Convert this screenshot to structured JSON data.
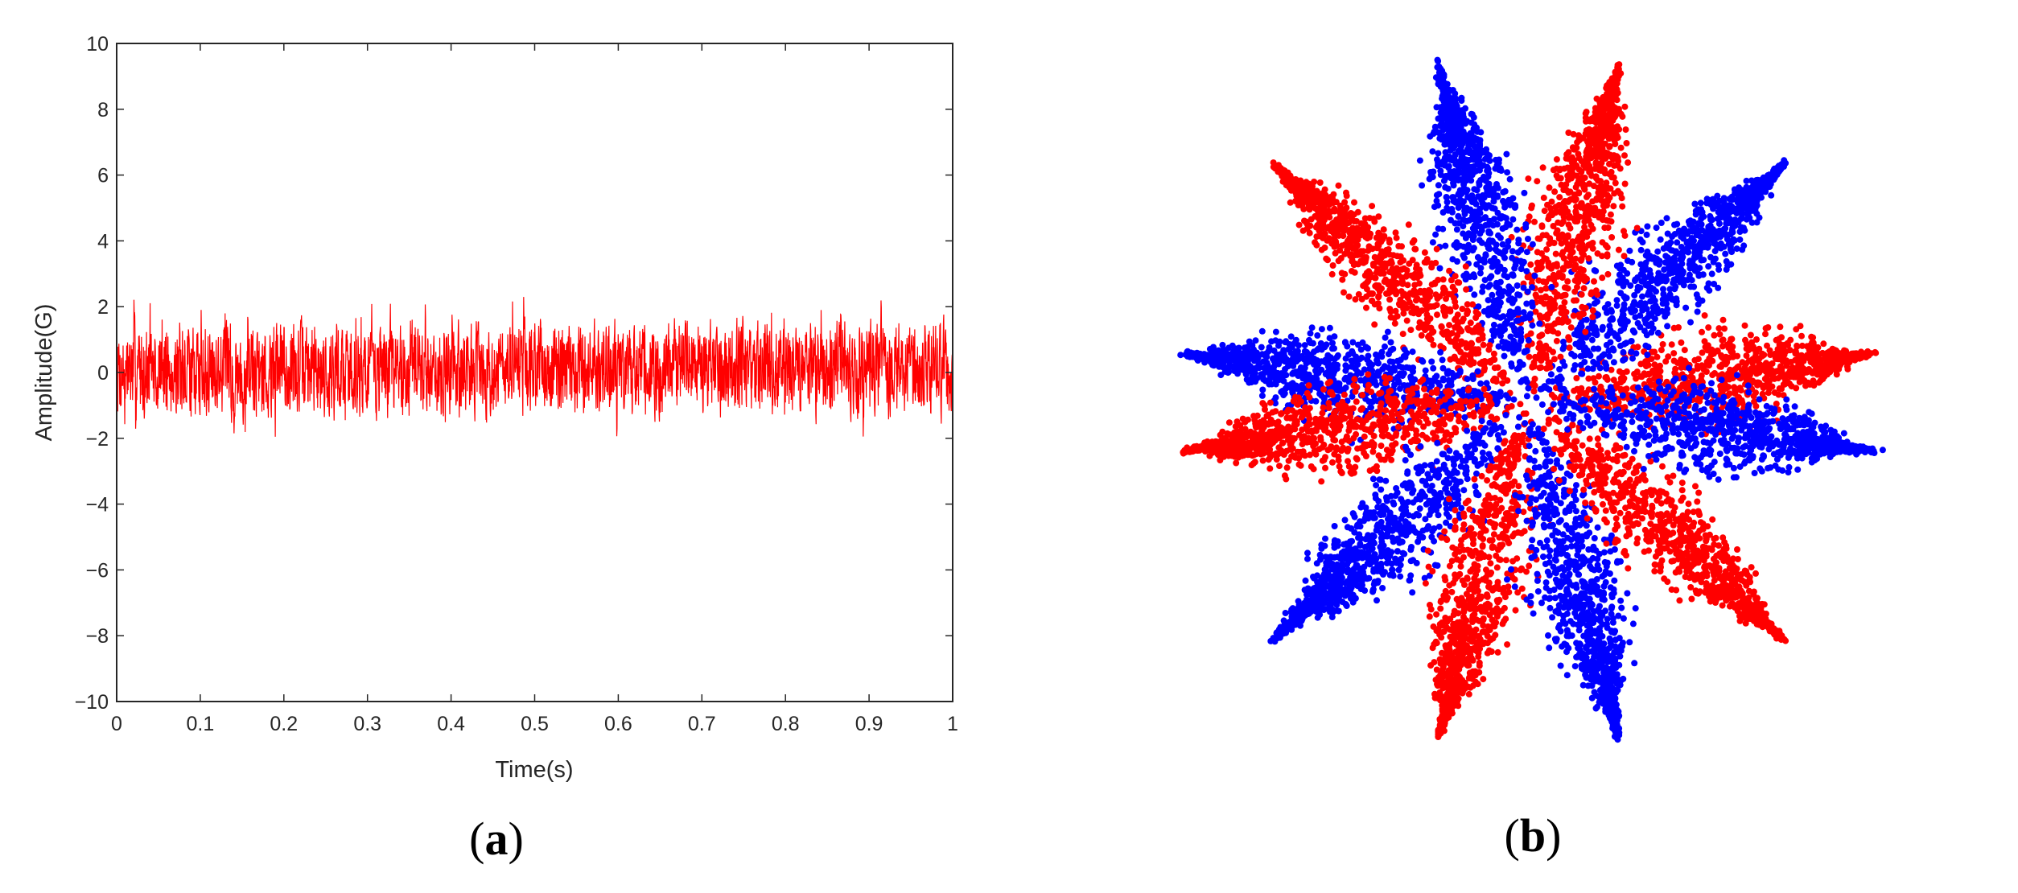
{
  "figure": {
    "panel_a_label": {
      "open": "(",
      "letter": "a",
      "close": ")"
    },
    "panel_b_label": {
      "open": "(",
      "letter": "b",
      "close": ")"
    }
  },
  "chart_data": [
    {
      "type": "line",
      "panel": "a",
      "xlabel": "Time(s)",
      "ylabel": "Amplitude(G)",
      "xlim": [
        0,
        1
      ],
      "ylim": [
        -10,
        10
      ],
      "xticks": [
        "0",
        "0.1",
        "0.2",
        "0.3",
        "0.4",
        "0.5",
        "0.6",
        "0.7",
        "0.8",
        "0.9",
        "1"
      ],
      "yticks": [
        "10",
        "8",
        "6",
        "4",
        "2",
        "0",
        "−2",
        "−4",
        "−6",
        "−8",
        "−10"
      ],
      "grid": false,
      "series": [
        {
          "color": "#ff0000",
          "signal": "noise",
          "mean": 0.1,
          "typical_min": -2,
          "typical_max": 2.3,
          "samples": 3000
        }
      ]
    },
    {
      "type": "scatter",
      "panel": "b",
      "axes_visible": false,
      "description_shape": "twelve petals radiating from center, alternating colors",
      "petal_angles_deg": [
        8,
        43,
        75,
        105,
        137,
        172,
        188,
        223,
        255,
        285,
        317,
        352
      ],
      "series": [
        {
          "color": "#ff0000",
          "petal_indices": [
            0,
            2,
            4,
            6,
            8,
            10
          ]
        },
        {
          "color": "#0000ff",
          "petal_indices": [
            1,
            3,
            5,
            7,
            9,
            11
          ]
        }
      ]
    }
  ]
}
